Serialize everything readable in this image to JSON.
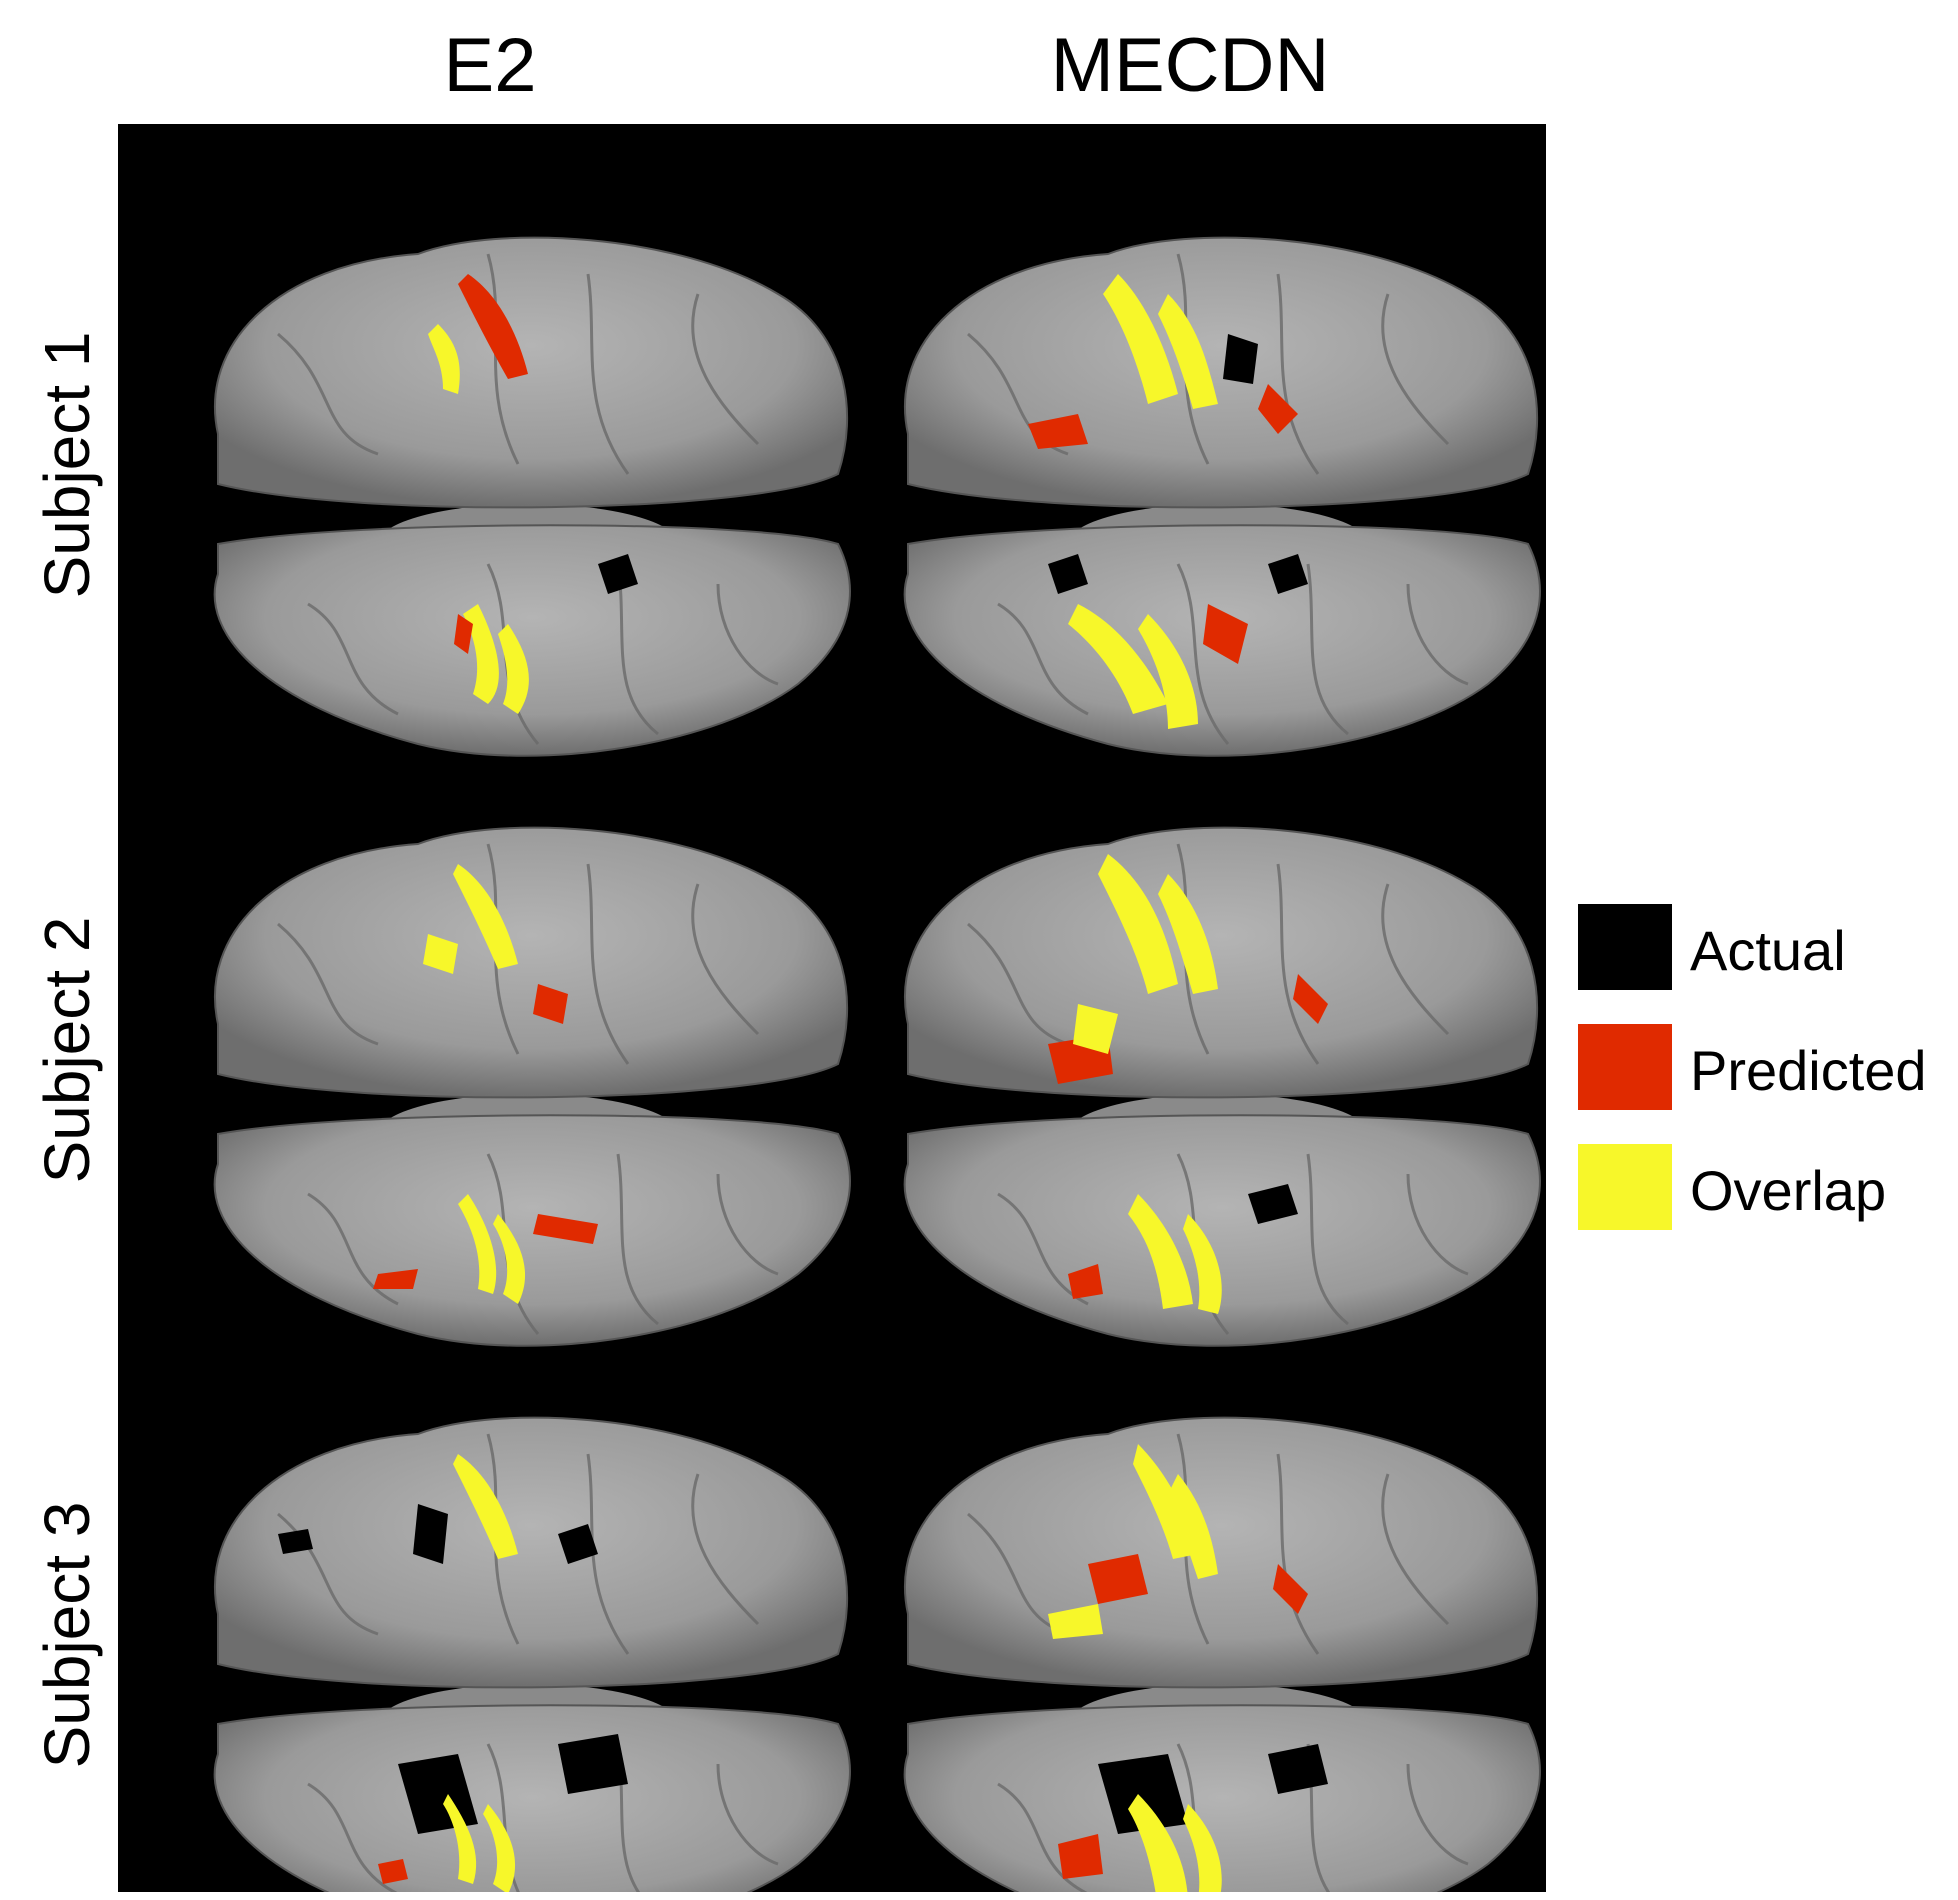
{
  "columns": [
    {
      "title": "E2"
    },
    {
      "title": "MECDN"
    }
  ],
  "rows": [
    {
      "label": "Subject 1"
    },
    {
      "label": "Subject 2"
    },
    {
      "label": "Subject 3"
    }
  ],
  "legend": {
    "items": [
      {
        "label": "Actual",
        "color": "#000000"
      },
      {
        "label": "Predicted",
        "color": "#e02a00"
      },
      {
        "label": "Overlap",
        "color": "#f7f72a"
      }
    ]
  },
  "colors": {
    "background": "#000000",
    "cortex": "#9a9a9a",
    "actual": "#000000",
    "predicted": "#e02a00",
    "overlap": "#f7f72a"
  }
}
